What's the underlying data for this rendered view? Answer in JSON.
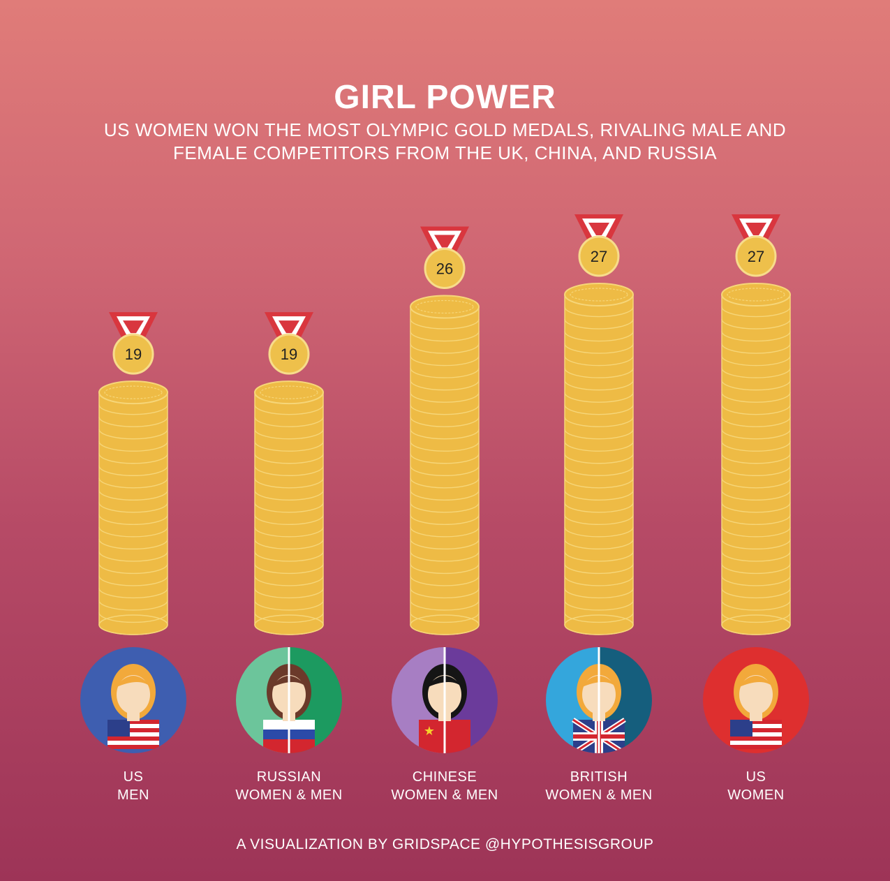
{
  "title": "GIRL POWER",
  "subtitle": "US WOMEN WON THE MOST OLYMPIC GOLD MEDALS, RIVALING MALE AND FEMALE COMPETITORS FROM THE UK, CHINA, AND RUSSIA",
  "credit": "A VISUALIZATION BY GRIDSPACE @HYPOTHESISGROUP",
  "colors": {
    "coin": "#eebb45",
    "coin_edge": "#f6d679",
    "medal": "#eec04b",
    "ribbon_red": "#d9363e",
    "ribbon_white": "#ffffff",
    "skin": "#f7dcbc"
  },
  "chart_data": {
    "type": "bar",
    "categories": [
      {
        "line1": "US",
        "line2": "MEN"
      },
      {
        "line1": "RUSSIAN",
        "line2": "WOMEN & MEN"
      },
      {
        "line1": "CHINESE",
        "line2": "WOMEN & MEN"
      },
      {
        "line1": "BRITISH",
        "line2": "WOMEN & MEN"
      },
      {
        "line1": "US",
        "line2": "WOMEN"
      }
    ],
    "values": [
      19,
      19,
      26,
      27,
      27
    ],
    "data_labels": [
      "19",
      "19",
      "26",
      "27",
      "27"
    ],
    "ylim": [
      0,
      27
    ],
    "icons": [
      {
        "name": "us-man-avatar-icon",
        "bg": [
          "#3e5eb0",
          "#3e5eb0"
        ],
        "hair": "#f2a93b",
        "flag": "us"
      },
      {
        "name": "russian-woman-man-avatar-icon",
        "bg": [
          "#6cc59b",
          "#1c9a60"
        ],
        "hair": "#6b3a2a",
        "flag": "russia"
      },
      {
        "name": "chinese-woman-man-avatar-icon",
        "bg": [
          "#a77ec3",
          "#6b3b9b"
        ],
        "hair": "#151515",
        "flag": "china"
      },
      {
        "name": "british-woman-man-avatar-icon",
        "bg": [
          "#34a6dc",
          "#155e7d"
        ],
        "hair": "#f2a93b",
        "flag": "uk"
      },
      {
        "name": "us-woman-avatar-icon",
        "bg": [
          "#de2f2f",
          "#de2f2f"
        ],
        "hair": "#f2a93b",
        "flag": "us"
      }
    ]
  }
}
